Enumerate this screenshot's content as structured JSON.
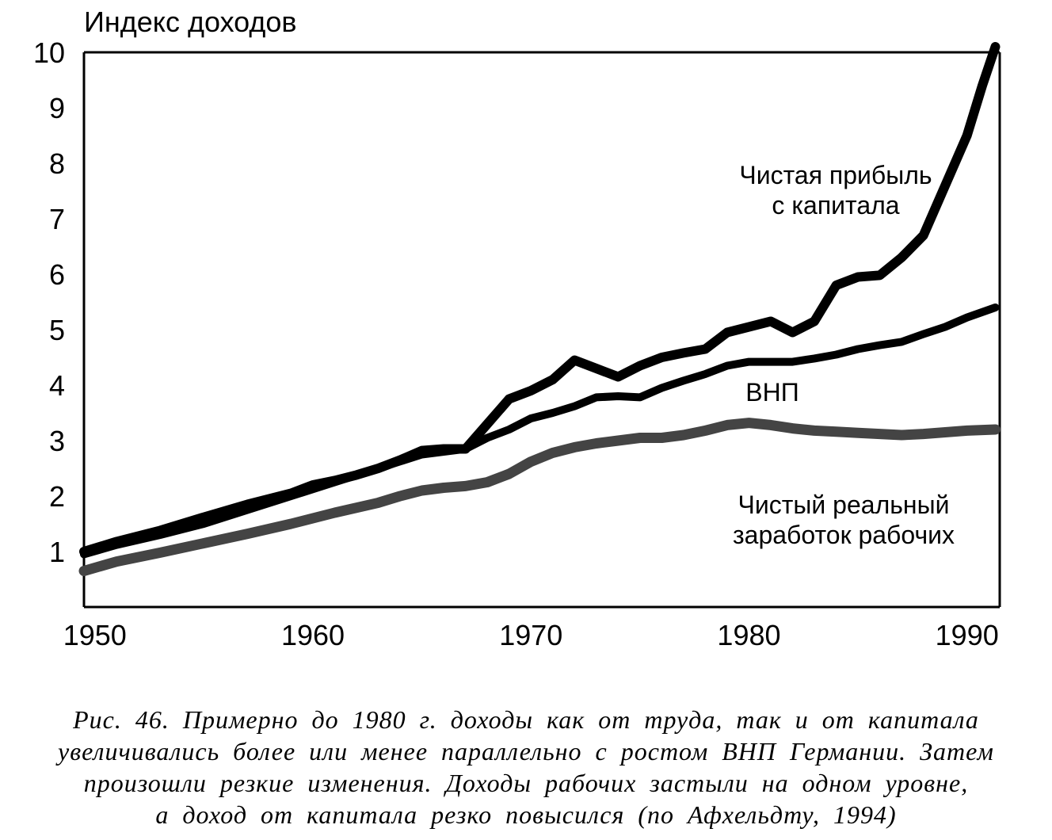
{
  "chart_data": {
    "type": "line",
    "ylabel": "Индекс доходов",
    "xlim": [
      1949.5,
      1991.5
    ],
    "ylim": [
      0,
      10
    ],
    "y_ticks": [
      "1",
      "2",
      "3",
      "4",
      "5",
      "6",
      "7",
      "8",
      "9",
      "10"
    ],
    "x_ticks": [
      "1950",
      "1960",
      "1970",
      "1980",
      "1990"
    ],
    "grid": false,
    "series": [
      {
        "name": "Чистая прибыль с капитала",
        "label_lines": [
          "Чистая прибыль",
          "с капитала"
        ],
        "color": "#000000",
        "points": [
          [
            1949.5,
            1.0
          ],
          [
            1951,
            1.18
          ],
          [
            1953,
            1.38
          ],
          [
            1955,
            1.62
          ],
          [
            1957,
            1.85
          ],
          [
            1959,
            2.05
          ],
          [
            1960,
            2.2
          ],
          [
            1961,
            2.28
          ],
          [
            1962,
            2.38
          ],
          [
            1963,
            2.5
          ],
          [
            1964,
            2.65
          ],
          [
            1965,
            2.82
          ],
          [
            1966,
            2.85
          ],
          [
            1967,
            2.85
          ],
          [
            1968,
            3.3
          ],
          [
            1969,
            3.75
          ],
          [
            1970,
            3.9
          ],
          [
            1971,
            4.1
          ],
          [
            1972,
            4.45
          ],
          [
            1973,
            4.3
          ],
          [
            1974,
            4.15
          ],
          [
            1975,
            4.35
          ],
          [
            1976,
            4.5
          ],
          [
            1977,
            4.58
          ],
          [
            1978,
            4.65
          ],
          [
            1979,
            4.95
          ],
          [
            1980,
            5.05
          ],
          [
            1981,
            5.15
          ],
          [
            1982,
            4.95
          ],
          [
            1983,
            5.15
          ],
          [
            1984,
            5.8
          ],
          [
            1985,
            5.95
          ],
          [
            1986,
            5.98
          ],
          [
            1987,
            6.3
          ],
          [
            1988,
            6.7
          ],
          [
            1989,
            7.6
          ],
          [
            1990,
            8.5
          ],
          [
            1990.7,
            9.4
          ],
          [
            1991.3,
            10.1
          ]
        ]
      },
      {
        "name": "ВНП",
        "label_lines": [
          "ВНП"
        ],
        "color": "#000000",
        "points": [
          [
            1949.5,
            0.95
          ],
          [
            1951,
            1.12
          ],
          [
            1953,
            1.3
          ],
          [
            1955,
            1.5
          ],
          [
            1957,
            1.75
          ],
          [
            1959,
            2.0
          ],
          [
            1961,
            2.25
          ],
          [
            1963,
            2.5
          ],
          [
            1965,
            2.75
          ],
          [
            1967,
            2.85
          ],
          [
            1968,
            3.05
          ],
          [
            1969,
            3.2
          ],
          [
            1970,
            3.4
          ],
          [
            1971,
            3.5
          ],
          [
            1972,
            3.62
          ],
          [
            1973,
            3.78
          ],
          [
            1974,
            3.8
          ],
          [
            1975,
            3.78
          ],
          [
            1976,
            3.95
          ],
          [
            1977,
            4.08
          ],
          [
            1978,
            4.2
          ],
          [
            1979,
            4.35
          ],
          [
            1980,
            4.42
          ],
          [
            1981,
            4.42
          ],
          [
            1982,
            4.42
          ],
          [
            1983,
            4.48
          ],
          [
            1984,
            4.55
          ],
          [
            1985,
            4.65
          ],
          [
            1986,
            4.72
          ],
          [
            1987,
            4.78
          ],
          [
            1988,
            4.92
          ],
          [
            1989,
            5.05
          ],
          [
            1990,
            5.22
          ],
          [
            1991.3,
            5.4
          ]
        ]
      },
      {
        "name": "Чистый реальный заработок рабочих",
        "label_lines": [
          "Чистый реальный",
          "заработок рабочих"
        ],
        "color": "#444444",
        "points": [
          [
            1949.5,
            0.65
          ],
          [
            1951,
            0.82
          ],
          [
            1953,
            0.98
          ],
          [
            1955,
            1.15
          ],
          [
            1957,
            1.32
          ],
          [
            1959,
            1.5
          ],
          [
            1961,
            1.7
          ],
          [
            1963,
            1.88
          ],
          [
            1964,
            2.0
          ],
          [
            1965,
            2.1
          ],
          [
            1966,
            2.15
          ],
          [
            1967,
            2.18
          ],
          [
            1968,
            2.25
          ],
          [
            1969,
            2.4
          ],
          [
            1970,
            2.62
          ],
          [
            1971,
            2.78
          ],
          [
            1972,
            2.88
          ],
          [
            1973,
            2.95
          ],
          [
            1974,
            3.0
          ],
          [
            1975,
            3.05
          ],
          [
            1976,
            3.05
          ],
          [
            1977,
            3.1
          ],
          [
            1978,
            3.18
          ],
          [
            1979,
            3.28
          ],
          [
            1980,
            3.32
          ],
          [
            1981,
            3.28
          ],
          [
            1982,
            3.22
          ],
          [
            1983,
            3.18
          ],
          [
            1984,
            3.16
          ],
          [
            1985,
            3.14
          ],
          [
            1986,
            3.12
          ],
          [
            1987,
            3.1
          ],
          [
            1988,
            3.12
          ],
          [
            1989,
            3.15
          ],
          [
            1990,
            3.18
          ],
          [
            1991.3,
            3.2
          ]
        ]
      }
    ]
  },
  "caption": {
    "lines": [
      "Рис. 46. Примерно до 1980 г. доходы как от труда, так и от капитала",
      "увеличивались более или менее параллельно с ростом ВНП Германии. Затем",
      "произошли резкие изменения. Доходы рабочих застыли на одном уровне,",
      "а доход от капитала резко повысился (по Афхельдту, 1994)"
    ]
  }
}
